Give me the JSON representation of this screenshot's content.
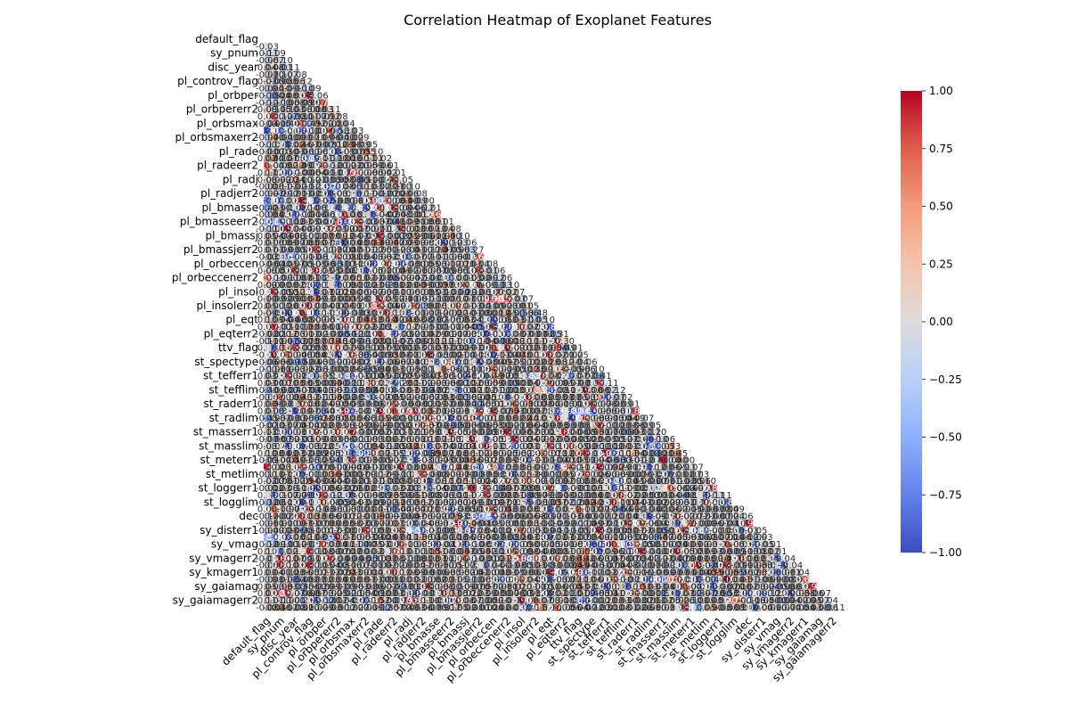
{
  "chart_data": {
    "type": "heatmap",
    "title": "Correlation Heatmap of Exoplanet Features",
    "mask": "upper-triangle",
    "vmin": -1.0,
    "vmax": 1.0,
    "colormap": "coolwarm",
    "colorbar_ticks": [
      "1.00",
      "0.75",
      "0.50",
      "0.25",
      "0.00",
      "−0.25",
      "−0.50",
      "−0.75",
      "−1.00"
    ],
    "colorbar_tick_values": [
      1.0,
      0.75,
      0.5,
      0.25,
      0.0,
      -0.25,
      -0.5,
      -0.75,
      -1.0
    ],
    "y_tick_labels": [
      "default_flag",
      "sy_pnum",
      "disc_year",
      "pl_controv_flag",
      "pl_orbper",
      "pl_orbpererr2",
      "pl_orbsmax",
      "pl_orbsmaxerr2",
      "pl_rade",
      "pl_radeerr2",
      "pl_radj",
      "pl_radjerr2",
      "pl_bmasse",
      "pl_bmasseerr2",
      "pl_bmassj",
      "pl_bmassjerr2",
      "pl_orbeccen",
      "pl_orbeccenerr2",
      "pl_insol",
      "pl_insolerr2",
      "pl_eqt",
      "pl_eqterr2",
      "ttv_flag",
      "st_spectype",
      "st_tefferr1",
      "st_tefflim",
      "st_raderr1",
      "st_radlim",
      "st_masserr1",
      "st_masslim",
      "st_meterr1",
      "st_metlim",
      "st_loggerr1",
      "st_logglim",
      "dec",
      "sy_disterr1",
      "sy_vmag",
      "sy_vmagerr2",
      "sy_kmagerr1",
      "sy_gaiamag",
      "sy_gaiamagerr2"
    ],
    "x_tick_labels": [
      "default_flag",
      "sy_pnum",
      "disc_year",
      "pl_controv_flag",
      "pl_orbper",
      "pl_orbpererr2",
      "pl_orbsmax",
      "pl_orbsmaxerr2",
      "pl_rade",
      "pl_radeerr2",
      "pl_radj",
      "pl_radjerr2",
      "pl_bmasse",
      "pl_bmasseerr2",
      "pl_bmassj",
      "pl_bmassjerr2",
      "pl_orbeccen",
      "pl_orbeccenerr2",
      "pl_insol",
      "pl_insolerr2",
      "pl_eqt",
      "pl_eqterr2",
      "ttv_flag",
      "st_spectype",
      "st_tefferr1",
      "st_tefflim",
      "st_raderr1",
      "st_radlim",
      "st_masserr1",
      "st_masslim",
      "st_meterr1",
      "st_metlim",
      "st_loggerr1",
      "st_logglim",
      "dec",
      "sy_disterr1",
      "sy_vmag",
      "sy_vmagerr2",
      "sy_kmagerr1",
      "sy_gaiamag",
      "sy_gaiamagerr2"
    ],
    "matrix_size": 82,
    "seed": 20240517,
    "cell_values_note": ""
  }
}
